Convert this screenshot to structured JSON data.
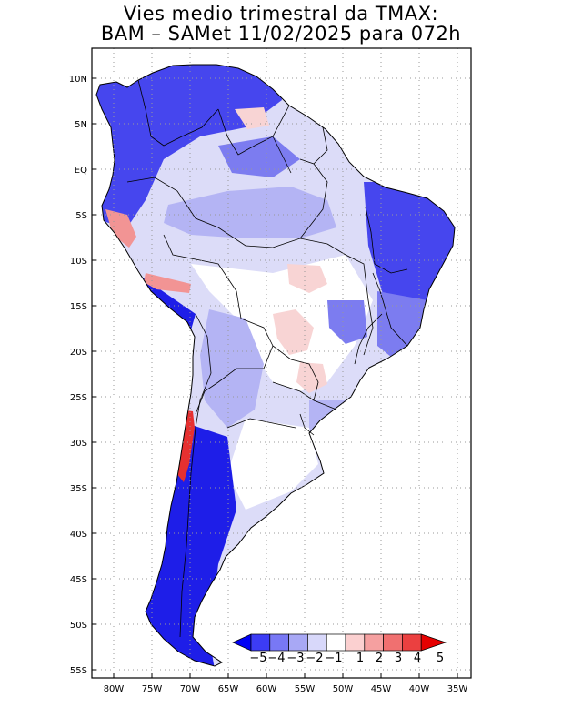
{
  "title": {
    "line1": "Vies medio trimestral da TMAX:",
    "line2": "BAM – SAMet 11/02/2025  para 072h"
  },
  "axes": {
    "lat_labels": [
      "10N",
      "5N",
      "EQ",
      "5S",
      "10S",
      "15S",
      "20S",
      "25S",
      "30S",
      "35S",
      "40S",
      "45S",
      "50S",
      "55S"
    ],
    "lon_labels": [
      "80W",
      "75W",
      "70W",
      "65W",
      "60W",
      "55W",
      "50W",
      "45W",
      "40W",
      "35W"
    ]
  },
  "colorbar": {
    "labels": [
      "−5",
      "−4",
      "−3",
      "−2",
      "−1",
      "1",
      "2",
      "3",
      "4",
      "5"
    ],
    "colors": [
      "#0000f5",
      "#3c3cf5",
      "#7878f5",
      "#a8a8f5",
      "#d8d8fa",
      "#ffffff",
      "#fbd0d0",
      "#f5a0a0",
      "#f07070",
      "#eb4040",
      "#e60000"
    ]
  },
  "map_colors": {
    "ocean": "#ffffff",
    "deep_negative": "#1e1ee8",
    "strong_negative": "#4646ee",
    "moderate_negative": "#7c7cf0",
    "weak_negative": "#b4b4f4",
    "slight_negative": "#dcdcf8",
    "neutral": "#ffffff",
    "slight_positive": "#f8d4d4",
    "positive": "#f29494",
    "strong_positive": "#e63030"
  }
}
